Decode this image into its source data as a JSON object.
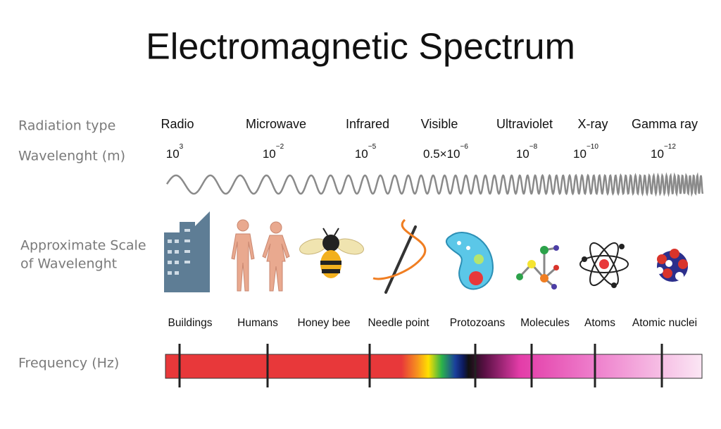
{
  "title": "Electromagnetic Spectrum",
  "row_labels": {
    "radiation_type": "Radiation type",
    "wavelength": "Wavelenght (m)",
    "scale": [
      "Approximate Scale",
      "of Wavelenght"
    ],
    "frequency": "Frequency (Hz)"
  },
  "radiation_types": [
    "Radio",
    "Microwave",
    "Infrared",
    "Visible",
    "Ultraviolet",
    "X-ray",
    "Gamma ray"
  ],
  "wavelengths": [
    {
      "base": "10",
      "exponent": "3"
    },
    {
      "base": "10",
      "exponent": "−2"
    },
    {
      "base": "10",
      "exponent": "−5"
    },
    {
      "base": "0.5×10",
      "exponent": "−6"
    },
    {
      "base": "10",
      "exponent": "−8"
    },
    {
      "base": "10",
      "exponent": "−10"
    },
    {
      "base": "10",
      "exponent": "−12"
    }
  ],
  "scale_objects": [
    "Buildings",
    "Humans",
    "Honey bee",
    "Needle point",
    "Protozoans",
    "Molecules",
    "Atoms",
    "Atomic nuclei"
  ]
}
